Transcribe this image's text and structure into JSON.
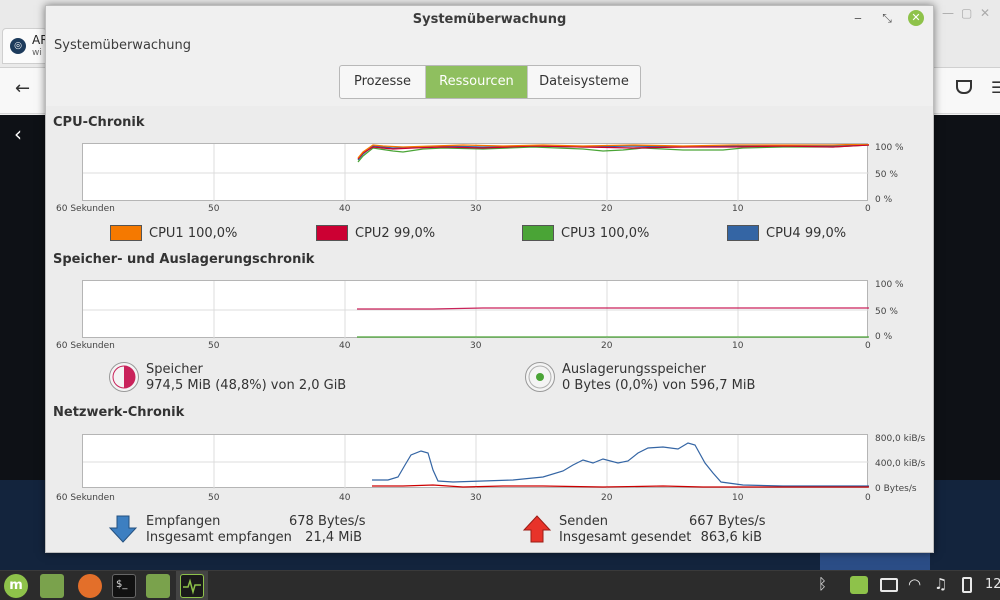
{
  "browser_bg": {
    "tab_title": "AR",
    "tab_sub": "wi",
    "ctl_min": "—",
    "ctl_max": "▢",
    "ctl_close": "✕",
    "back": "←",
    "menu": "☰",
    "dark_chevron": "‹"
  },
  "window": {
    "title": "Systemüberwachung",
    "subtitle": "Systemüberwachung",
    "btn_min": "‒",
    "btn_max": "⤡",
    "btn_close": "✕",
    "tabs": [
      {
        "label": "Prozesse",
        "active": false
      },
      {
        "label": "Ressourcen",
        "active": true
      },
      {
        "label": "Dateisysteme",
        "active": false
      }
    ]
  },
  "x_axis_labels": [
    "60 Sekunden",
    "50",
    "40",
    "30",
    "20",
    "10",
    "0"
  ],
  "cpu": {
    "title": "CPU-Chronik",
    "y_labels": [
      "100 %",
      "50 %",
      "0 %"
    ],
    "legend": [
      {
        "name": "CPU1",
        "value": "100,0%",
        "color": "#f57900"
      },
      {
        "name": "CPU2",
        "value": "99,0%",
        "color": "#cc0033"
      },
      {
        "name": "CPU3",
        "value": "100,0%",
        "color": "#4aa436"
      },
      {
        "name": "CPU4",
        "value": "99,0%",
        "color": "#3465a4"
      }
    ]
  },
  "memory": {
    "title": "Speicher- und Auslagerungschronik",
    "y_labels": [
      "100 %",
      "50 %",
      "0 %"
    ],
    "mem_label": "Speicher",
    "mem_value": "974,5 MiB (48,8%) von 2,0 GiB",
    "mem_color": "#c9225a",
    "mem_fraction": 0.488,
    "swap_label": "Auslagerungsspeicher",
    "swap_value": "0 Bytes (0,0%) von 596,7 MiB",
    "swap_color": "#4aa436",
    "swap_fraction": 0
  },
  "network": {
    "title": "Netzwerk-Chronik",
    "y_labels": [
      "800,0 kiB/s",
      "400,0 kiB/s",
      "0 Bytes/s"
    ],
    "recv_label": "Empfangen",
    "recv_value": "678 Bytes/s",
    "recv_total_label": "Insgesamt empfangen",
    "recv_total_value": "21,4 MiB",
    "send_label": "Senden",
    "send_value": "667 Bytes/s",
    "send_total_label": "Insgesamt gesendet",
    "send_total_value": "863,6 kiB",
    "recv_color": "#3465a4",
    "send_color": "#cc0000"
  },
  "taskbar": {
    "mint_glyph": "m",
    "term_glyph": "$_",
    "tray_bluetooth": "ᛒ",
    "tray_wifi": "◠",
    "tray_sound": "♫",
    "tray_clock": "12"
  }
}
